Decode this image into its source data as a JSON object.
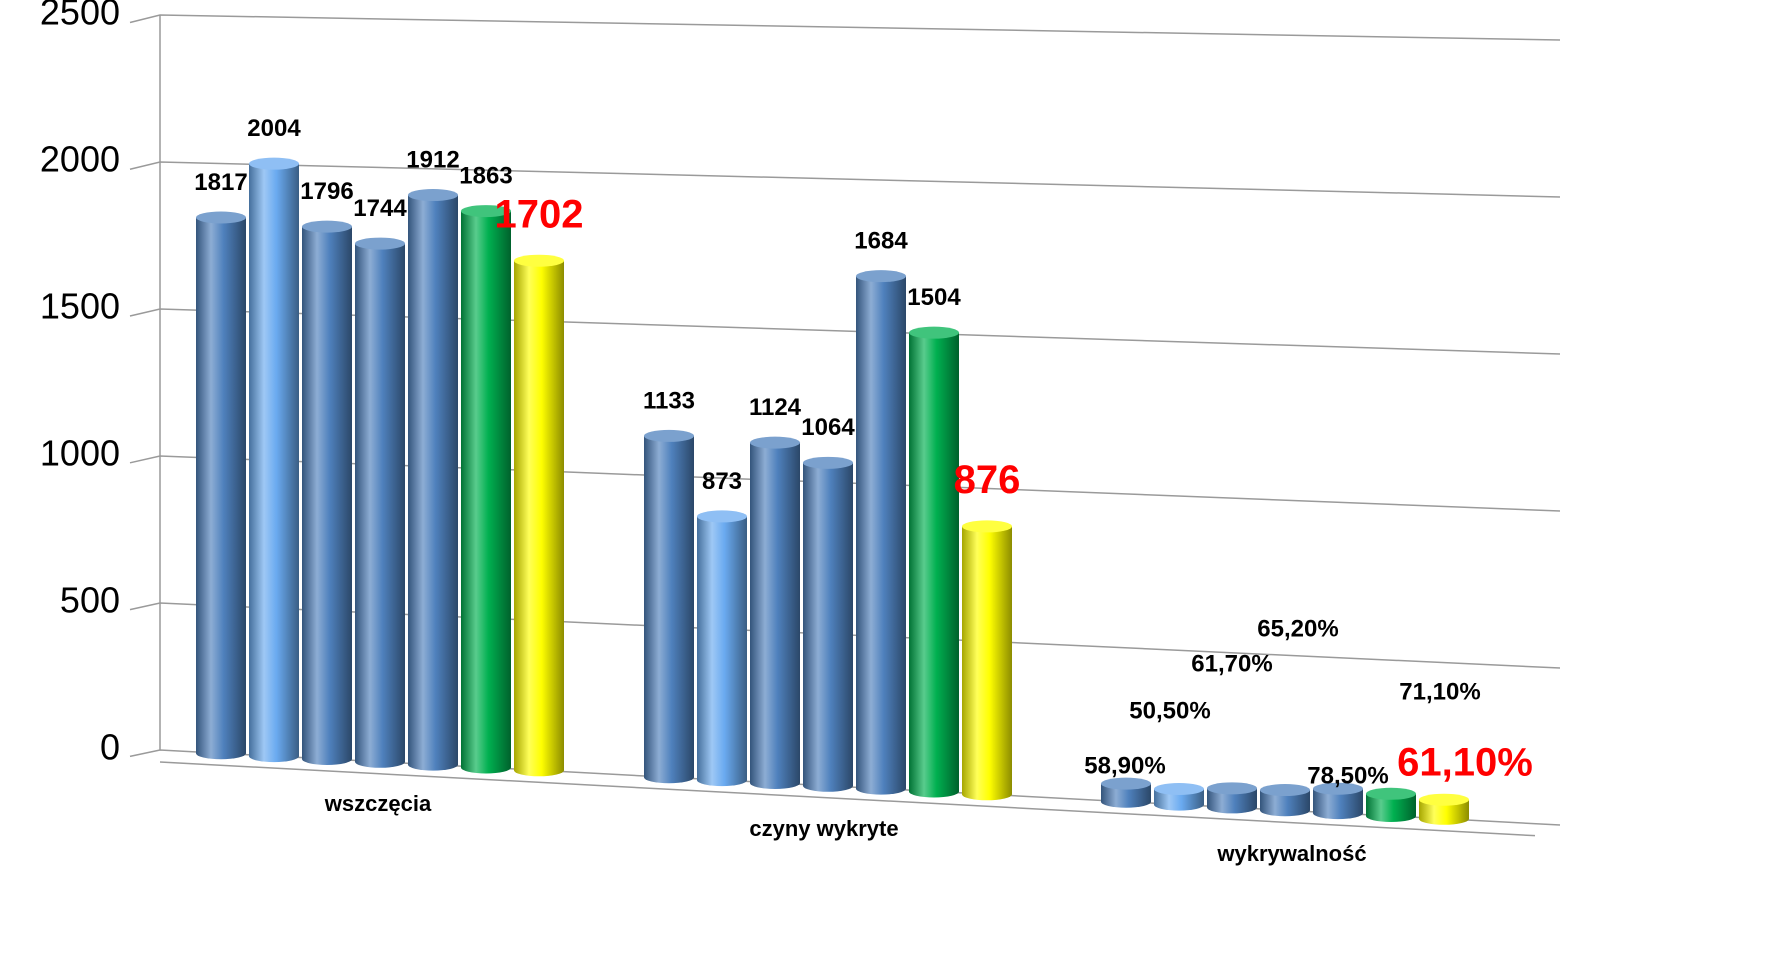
{
  "chart_data": {
    "type": "bar3d",
    "categories": [
      "wszczęcia",
      "czyny wykryte",
      "wykrywalność"
    ],
    "series": [
      {
        "color": "#4f81bd",
        "values": [
          1817,
          1133,
          58.9
        ],
        "value_labels": [
          "1817",
          "1133",
          "58,90%"
        ]
      },
      {
        "color": "#6aaaf0",
        "values": [
          2004,
          873,
          50.5
        ],
        "value_labels": [
          "2004",
          "873",
          "50,50%"
        ]
      },
      {
        "color": "#4f81bd",
        "values": [
          1796,
          1124,
          61.7
        ],
        "value_labels": [
          "1796",
          "1124",
          "61,70%"
        ]
      },
      {
        "color": "#4f81bd",
        "values": [
          1744,
          1064,
          65.2
        ],
        "value_labels": [
          "1744",
          "1064",
          "65,20%"
        ]
      },
      {
        "color": "#4f81bd",
        "values": [
          1912,
          1684,
          78.5
        ],
        "value_labels": [
          "1912",
          "1684",
          "78,50%"
        ]
      },
      {
        "color": "#00b050",
        "values": [
          1863,
          1504,
          71.1
        ],
        "value_labels": [
          "1863",
          "1504",
          "71,10%"
        ]
      },
      {
        "color": "#ffff00",
        "values": [
          1702,
          876,
          61.1
        ],
        "value_labels": [
          "1702",
          "876",
          "61,10%"
        ],
        "label_color": "#ff0000"
      }
    ],
    "ylim": [
      0,
      2500
    ],
    "yticks": [
      0,
      500,
      1000,
      1500,
      2000,
      2500
    ],
    "grid": true
  }
}
